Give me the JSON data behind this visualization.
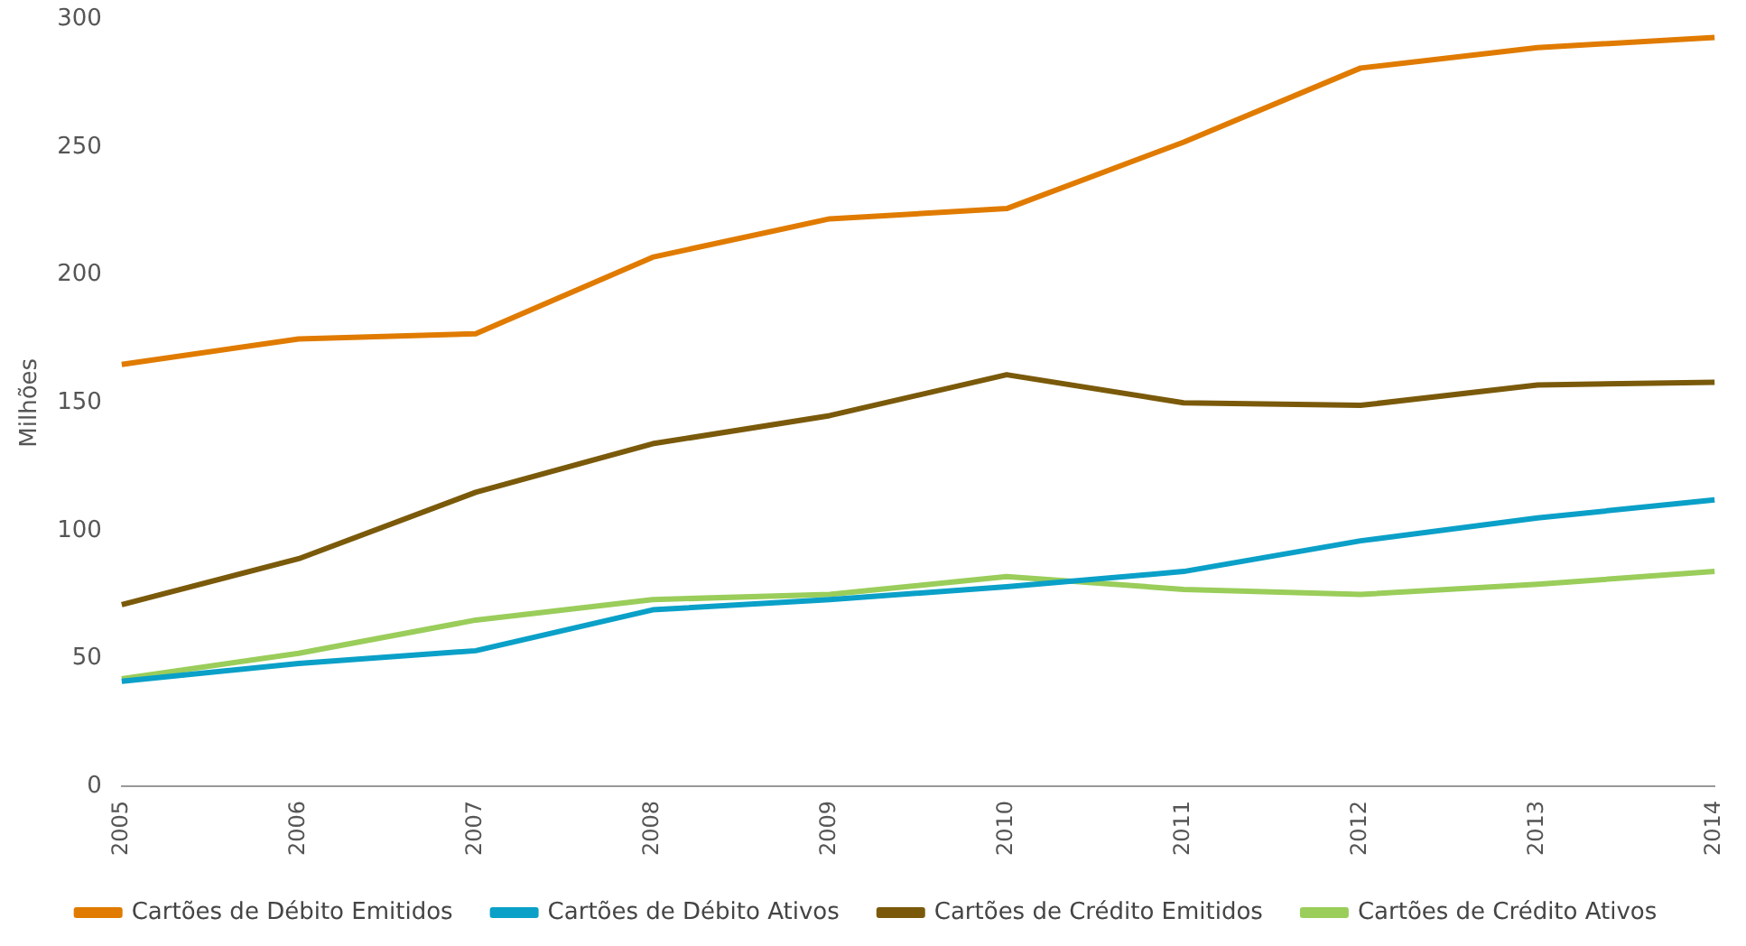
{
  "chart_data": {
    "type": "line",
    "ylabel": "Milhões",
    "categories": [
      "2005",
      "2006",
      "2007",
      "2008",
      "2009",
      "2010",
      "2011",
      "2012",
      "2013",
      "2014"
    ],
    "series": [
      {
        "name": "Cartões de Débito Emitidos",
        "color": "#e07b00",
        "values": [
          165,
          175,
          177,
          207,
          222,
          226,
          252,
          281,
          289,
          293
        ]
      },
      {
        "name": "Cartões de Débito Ativos",
        "color": "#0aa0c8",
        "values": [
          41,
          48,
          53,
          69,
          73,
          78,
          84,
          96,
          105,
          112
        ]
      },
      {
        "name": "Cartões de Crédito Emitidos",
        "color": "#7a5a0a",
        "values": [
          71,
          89,
          115,
          134,
          145,
          161,
          150,
          149,
          157,
          158
        ]
      },
      {
        "name": "Cartões de Crédito Ativos",
        "color": "#9acd5a",
        "values": [
          42,
          52,
          65,
          73,
          75,
          82,
          77,
          75,
          79,
          84
        ]
      }
    ],
    "ylim": [
      0,
      300
    ],
    "yticks": [
      0,
      50,
      100,
      150,
      200,
      250,
      300
    ],
    "grid": false,
    "legend": "bottom",
    "marker": "none",
    "line_style": "solid"
  }
}
